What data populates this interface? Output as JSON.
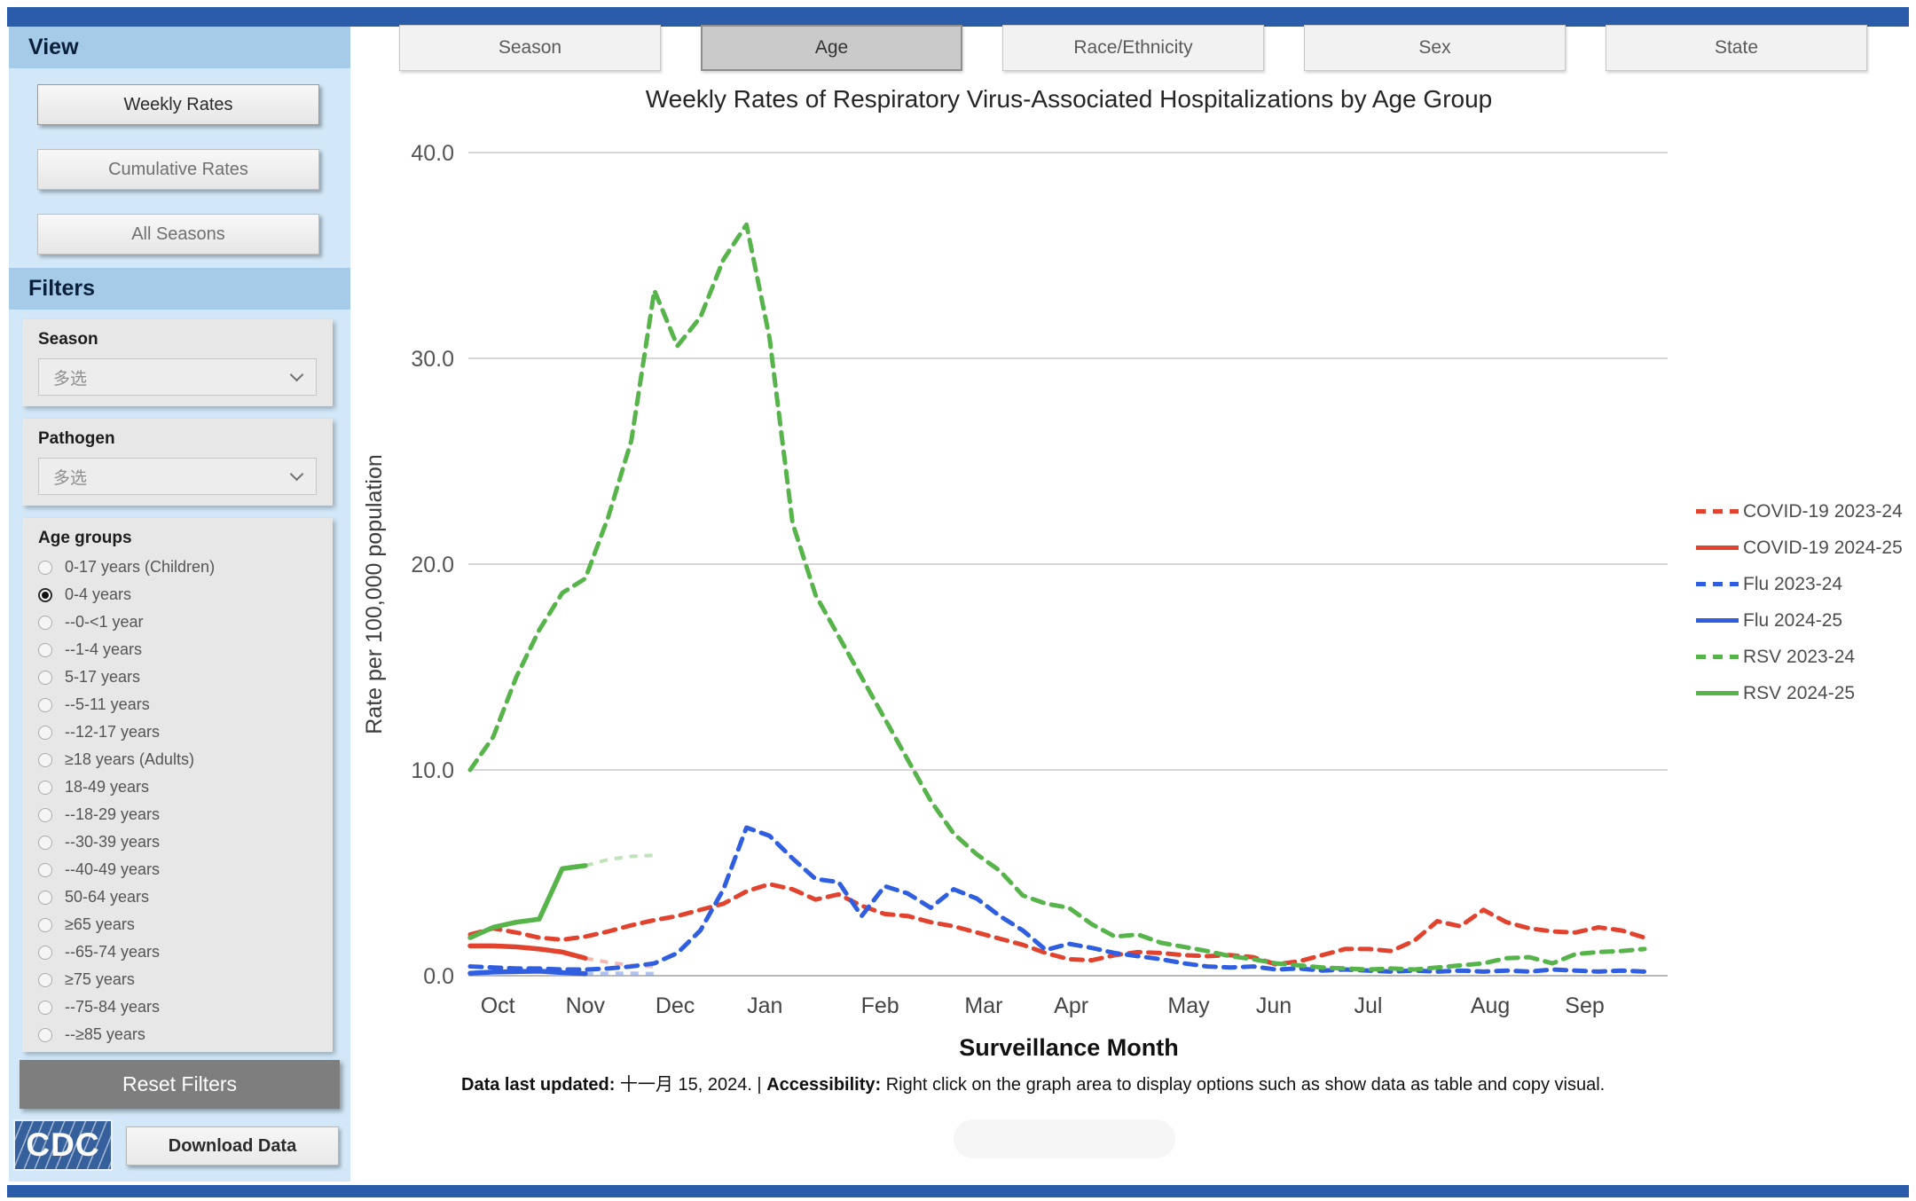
{
  "colors": {
    "accent_bar": "#2A5CAA",
    "sidebar_band": "#A6CBE9",
    "sidebar_bg": "#D2E8F8",
    "covid_red": "#E2432F",
    "flu_blue": "#2F5FE0",
    "rsv_green": "#56B44A"
  },
  "header": {
    "tabs": [
      {
        "label": "Season",
        "active": false
      },
      {
        "label": "Age",
        "active": true
      },
      {
        "label": "Race/Ethnicity",
        "active": false
      },
      {
        "label": "Sex",
        "active": false
      },
      {
        "label": "State",
        "active": false
      }
    ]
  },
  "sidebar": {
    "view_title": "View",
    "view_buttons": [
      {
        "label": "Weekly Rates",
        "active": true
      },
      {
        "label": "Cumulative Rates",
        "active": false
      },
      {
        "label": "All Seasons",
        "active": false
      }
    ],
    "filters_title": "Filters",
    "filters": [
      {
        "label": "Season",
        "value": "多选"
      },
      {
        "label": "Pathogen",
        "value": "多选"
      }
    ],
    "age_groups": {
      "label": "Age groups",
      "options": [
        {
          "label": "0-17 years (Children)",
          "selected": false
        },
        {
          "label": "0-4 years",
          "selected": true
        },
        {
          "label": "--0-<1 year",
          "selected": false
        },
        {
          "label": "--1-4 years",
          "selected": false
        },
        {
          "label": "5-17 years",
          "selected": false
        },
        {
          "label": "--5-11 years",
          "selected": false
        },
        {
          "label": "--12-17 years",
          "selected": false
        },
        {
          "label": "≥18 years (Adults)",
          "selected": false
        },
        {
          "label": "18-49 years",
          "selected": false
        },
        {
          "label": "--18-29 years",
          "selected": false
        },
        {
          "label": "--30-39 years",
          "selected": false
        },
        {
          "label": "--40-49 years",
          "selected": false
        },
        {
          "label": "50-64 years",
          "selected": false
        },
        {
          "label": "≥65 years",
          "selected": false
        },
        {
          "label": "--65-74 years",
          "selected": false
        },
        {
          "label": "≥75 years",
          "selected": false
        },
        {
          "label": "--75-84 years",
          "selected": false
        },
        {
          "label": "--≥85 years",
          "selected": false
        }
      ]
    },
    "reset_button": "Reset Filters",
    "logo_text": "CDC",
    "download_button": "Download Data"
  },
  "chart_data": {
    "type": "line",
    "title": "Weekly Rates of Respiratory Virus-Associated Hospitalizations by Age Group",
    "xlabel": "Surveillance Month",
    "ylabel": "Rate per 100,000 population",
    "ylim": [
      0,
      40
    ],
    "ytick_labels": [
      "0.0",
      "10.0",
      "20.0",
      "30.0",
      "40.0"
    ],
    "grid": true,
    "legend_position": "right",
    "weeks_total": 52,
    "months": [
      "Oct",
      "Nov",
      "Dec",
      "Jan",
      "Feb",
      "Mar",
      "Apr",
      "May",
      "Jun",
      "Jul",
      "Aug",
      "Sep"
    ],
    "month_week_positions": [
      1.2,
      5.0,
      8.9,
      12.8,
      17.8,
      22.3,
      26.1,
      31.2,
      34.9,
      39.0,
      44.3,
      48.4
    ],
    "series": [
      {
        "name": "COVID-19 2023-24",
        "color": "#E2432F",
        "style": "dashed",
        "start_week": 0,
        "values": [
          2.0,
          2.3,
          2.1,
          1.85,
          1.75,
          1.9,
          2.15,
          2.45,
          2.7,
          2.9,
          3.2,
          3.5,
          4.1,
          4.45,
          4.2,
          3.7,
          3.95,
          3.4,
          3.0,
          2.9,
          2.6,
          2.4,
          2.1,
          1.8,
          1.5,
          1.1,
          0.8,
          0.75,
          1.0,
          1.15,
          1.1,
          1.0,
          0.95,
          1.0,
          0.9,
          0.55,
          0.7,
          1.0,
          1.3,
          1.3,
          1.2,
          1.7,
          2.65,
          2.4,
          3.2,
          2.6,
          2.3,
          2.15,
          2.1,
          2.35,
          2.2,
          1.85
        ]
      },
      {
        "name": "COVID-19 2024-25",
        "color": "#E2432F",
        "style": "solid",
        "start_week": 0,
        "values": [
          1.45,
          1.45,
          1.4,
          1.3,
          1.15,
          0.85
        ],
        "preliminary_tail": [
          0.85,
          0.65,
          0.5,
          0.45
        ]
      },
      {
        "name": "Flu 2023-24",
        "color": "#2F5FE0",
        "style": "dashed",
        "start_week": 0,
        "values": [
          0.45,
          0.4,
          0.35,
          0.35,
          0.3,
          0.3,
          0.35,
          0.45,
          0.6,
          1.1,
          2.2,
          4.2,
          7.2,
          6.8,
          5.7,
          4.7,
          4.55,
          2.9,
          4.35,
          4.0,
          3.3,
          4.2,
          3.75,
          2.9,
          2.2,
          1.25,
          1.55,
          1.35,
          1.1,
          0.95,
          0.8,
          0.6,
          0.45,
          0.4,
          0.45,
          0.3,
          0.35,
          0.25,
          0.3,
          0.25,
          0.2,
          0.25,
          0.2,
          0.25,
          0.2,
          0.25,
          0.2,
          0.3,
          0.25,
          0.2,
          0.25,
          0.2
        ]
      },
      {
        "name": "Flu 2024-25",
        "color": "#2F5FE0",
        "style": "solid",
        "start_week": 0,
        "values": [
          0.12,
          0.18,
          0.2,
          0.22,
          0.15,
          0.1
        ],
        "preliminary_tail": [
          0.1,
          0.12,
          0.12,
          0.1
        ]
      },
      {
        "name": "RSV 2023-24",
        "color": "#56B44A",
        "style": "dashed",
        "start_week": 0,
        "values": [
          10.0,
          11.6,
          14.5,
          16.8,
          18.6,
          19.3,
          22.3,
          26.0,
          33.3,
          30.6,
          32.0,
          34.8,
          36.5,
          31.0,
          22.0,
          18.5,
          16.5,
          14.5,
          12.5,
          10.5,
          8.5,
          6.9,
          5.9,
          5.1,
          3.9,
          3.5,
          3.3,
          2.5,
          1.9,
          2.0,
          1.6,
          1.4,
          1.2,
          0.95,
          0.8,
          0.6,
          0.5,
          0.4,
          0.35,
          0.3,
          0.35,
          0.3,
          0.4,
          0.5,
          0.6,
          0.85,
          0.9,
          0.6,
          1.05,
          1.15,
          1.2,
          1.3
        ]
      },
      {
        "name": "RSV 2024-25",
        "color": "#56B44A",
        "style": "solid",
        "start_week": 0,
        "values": [
          1.85,
          2.35,
          2.6,
          2.75,
          5.2,
          5.35
        ],
        "preliminary_tail": [
          5.35,
          5.65,
          5.8,
          5.85
        ]
      }
    ]
  },
  "footer": {
    "updated_label": "Data last updated:",
    "updated_value": " 十一月 15, 2024. | ",
    "accessibility_label": "Accessibility:",
    "accessibility_text": " Right click on the graph area to display options such as show data as table and copy visual."
  }
}
